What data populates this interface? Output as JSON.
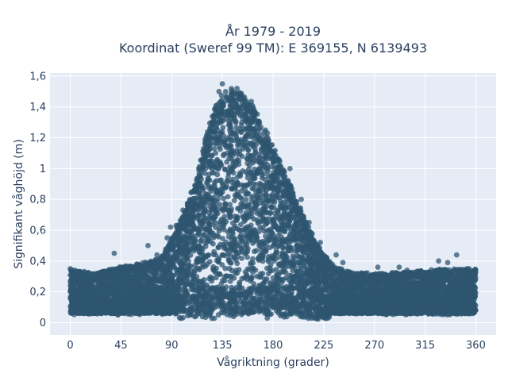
{
  "chart_data": {
    "type": "scatter",
    "title_line1": "År 1979 - 2019",
    "title_line2": "Koordinat (Sweref 99 TM): E 369155, N 6139493",
    "xlabel": "Vågriktning (grader)",
    "ylabel": "Signifikant våghöjd (m)",
    "xlim": [
      -18,
      378
    ],
    "ylim": [
      -0.08,
      1.62
    ],
    "x_ticks": [
      0,
      45,
      90,
      135,
      180,
      225,
      270,
      315,
      360
    ],
    "y_ticks": [
      0,
      0.2,
      0.4,
      0.6,
      0.8,
      1,
      1.2,
      1.4,
      1.6
    ],
    "y_tick_labels": [
      "0",
      "0,2",
      "0,4",
      "0,6",
      "0,8",
      "1",
      "1,2",
      "1,4",
      "1,6"
    ],
    "x_tick_labels": [
      "0",
      "45",
      "90",
      "135",
      "180",
      "225",
      "270",
      "315",
      "360"
    ],
    "grid": true,
    "marker_color": "#2f5670",
    "background": "#e5ecf6",
    "envelope": {
      "direction": [
        0,
        20,
        40,
        60,
        80,
        90,
        100,
        110,
        120,
        130,
        140,
        150,
        160,
        170,
        180,
        190,
        200,
        210,
        220,
        230,
        240,
        250,
        270,
        300,
        330,
        360
      ],
      "max_height": [
        0.35,
        0.32,
        0.36,
        0.38,
        0.42,
        0.55,
        0.7,
        0.9,
        1.2,
        1.45,
        1.52,
        1.52,
        1.45,
        1.3,
        1.15,
        0.98,
        0.82,
        0.65,
        0.5,
        0.4,
        0.35,
        0.33,
        0.32,
        0.33,
        0.35,
        0.35
      ],
      "min_height": 0.02
    },
    "outliers": [
      [
        0,
        0.35
      ],
      [
        7,
        0.31
      ],
      [
        13,
        0.3
      ],
      [
        28,
        0.33
      ],
      [
        39,
        0.45
      ],
      [
        59,
        0.38
      ],
      [
        69,
        0.5
      ],
      [
        77,
        0.44
      ],
      [
        86,
        0.55
      ],
      [
        89,
        0.62
      ],
      [
        94,
        0.63
      ],
      [
        100,
        0.73
      ],
      [
        113,
        0.89
      ],
      [
        120,
        1.0
      ],
      [
        125,
        1.25
      ],
      [
        132,
        1.5
      ],
      [
        135,
        1.55
      ],
      [
        148,
        1.52
      ],
      [
        175,
        1.23
      ],
      [
        195,
        1.0
      ],
      [
        205,
        0.8
      ],
      [
        212,
        0.65
      ],
      [
        222,
        0.52
      ],
      [
        236,
        0.44
      ],
      [
        242,
        0.39
      ],
      [
        273,
        0.36
      ],
      [
        292,
        0.36
      ],
      [
        299,
        0.34
      ],
      [
        306,
        0.32
      ],
      [
        327,
        0.4
      ],
      [
        335,
        0.39
      ],
      [
        343,
        0.44
      ],
      [
        354,
        0.35
      ],
      [
        358,
        0.3
      ]
    ]
  }
}
